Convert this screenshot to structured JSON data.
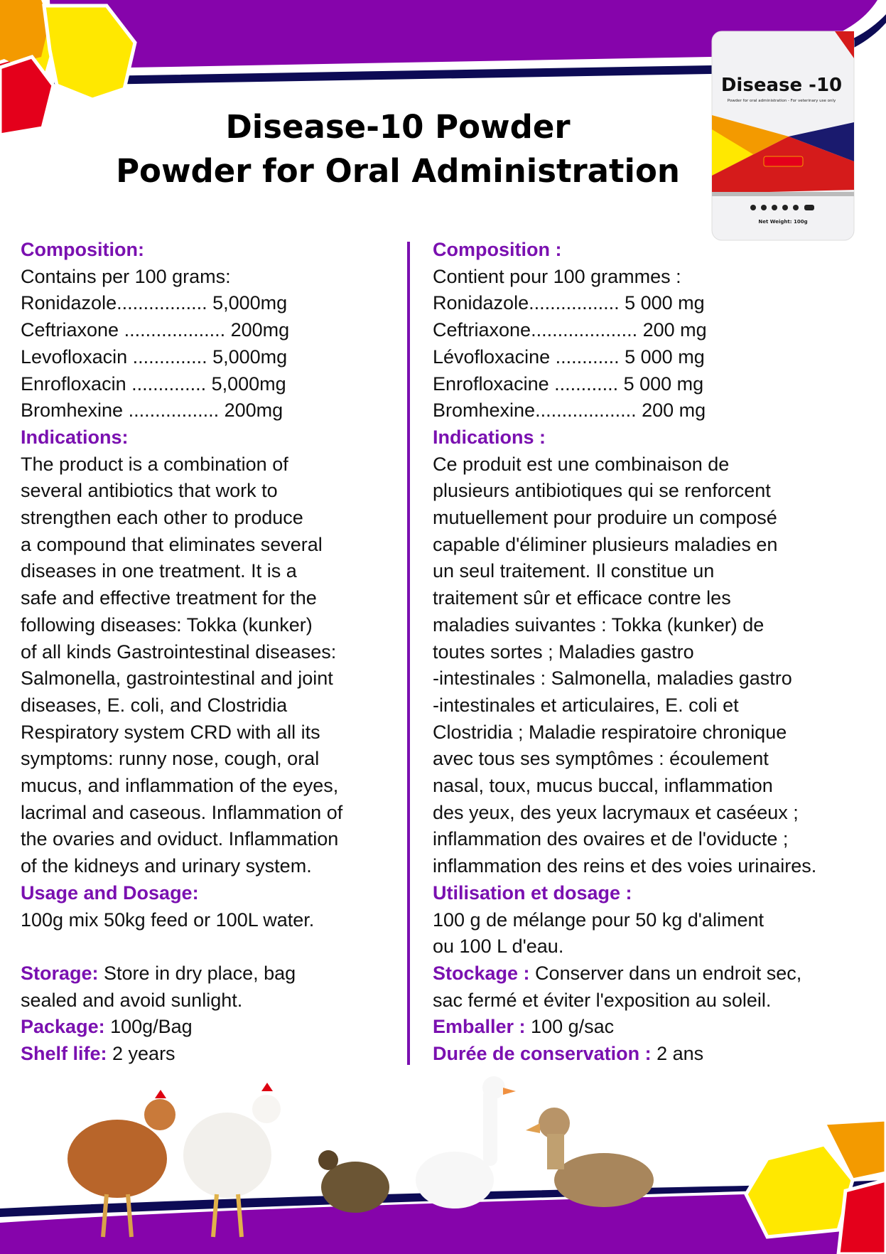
{
  "title": {
    "line1": "Disease-10 Powder",
    "line2": "Powder for Oral Administration"
  },
  "package": {
    "brand": "Disease -10",
    "subtitle": "Powder for oral administration - For veterinary use only",
    "net_weight": "Net Weight: 100g"
  },
  "colors": {
    "purple": "#7a10b0",
    "navy": "#0d0b55",
    "orange": "#f39a00",
    "yellow": "#ffe800",
    "red": "#e4001b"
  },
  "english": [
    {
      "h": "Composition:"
    },
    {
      "t": "Contains per 100 grams:"
    },
    {
      "t": "Ronidazole................. 5,000mg"
    },
    {
      "t": "Ceftriaxone ................... 200mg"
    },
    {
      "t": "Levofloxacin .............. 5,000mg"
    },
    {
      "t": "Enrofloxacin .............. 5,000mg"
    },
    {
      "t": "Bromhexine ................. 200mg"
    },
    {
      "h": "Indications:"
    },
    {
      "t": "The product is a combination of"
    },
    {
      "t": "several antibiotics that work to"
    },
    {
      "t": "strengthen each other to produce"
    },
    {
      "t": "a compound that eliminates several"
    },
    {
      "t": "diseases in one treatment. It is a"
    },
    {
      "t": "safe and effective treatment for the"
    },
    {
      "t": "following diseases: Tokka (kunker)"
    },
    {
      "t": "of all kinds Gastrointestinal diseases:"
    },
    {
      "t": "Salmonella, gastrointestinal and joint"
    },
    {
      "t": "diseases, E. coli, and Clostridia"
    },
    {
      "t": "Respiratory system CRD with all its"
    },
    {
      "t": "symptoms: runny nose, cough, oral"
    },
    {
      "t": "mucus, and inflammation of the eyes,"
    },
    {
      "t": "lacrimal and caseous. Inflammation of"
    },
    {
      "t": "the ovaries and oviduct. Inflammation"
    },
    {
      "t": "of the kidneys and urinary system."
    },
    {
      "h": "Usage and Dosage:"
    },
    {
      "t": "100g mix 50kg feed or 100L water."
    },
    {
      "gap": true
    },
    {
      "h": "Storage:",
      "t": " Store in dry place, bag"
    },
    {
      "t": "sealed and avoid sunlight."
    },
    {
      "h": "Package:",
      "t": " 100g/Bag"
    },
    {
      "h": "Shelf life:",
      "t": " 2 years"
    }
  ],
  "french": [
    {
      "h": "Composition :"
    },
    {
      "t": "Contient pour 100 grammes :"
    },
    {
      "t": "Ronidazole................. 5 000 mg"
    },
    {
      "t": "Ceftriaxone.................... 200 mg"
    },
    {
      "t": "Lévofloxacine ............ 5 000 mg"
    },
    {
      "t": "Enrofloxacine ............ 5 000 mg"
    },
    {
      "t": "Bromhexine................... 200 mg"
    },
    {
      "h": "Indications :"
    },
    {
      "t": "Ce produit est une combinaison de"
    },
    {
      "t": "plusieurs antibiotiques qui se renforcent"
    },
    {
      "t": "mutuellement pour produire un composé"
    },
    {
      "t": "capable d'éliminer plusieurs maladies en"
    },
    {
      "t": "un seul traitement. Il constitue un"
    },
    {
      "t": "traitement sûr et efficace contre les"
    },
    {
      "t": "maladies suivantes : Tokka (kunker) de"
    },
    {
      "t": "toutes sortes ; Maladies gastro"
    },
    {
      "t": "-intestinales : Salmonella, maladies gastro"
    },
    {
      "t": "-intestinales et articulaires, E. coli et"
    },
    {
      "t": "Clostridia ; Maladie respiratoire chronique"
    },
    {
      "t": "avec tous ses symptômes : écoulement"
    },
    {
      "t": "nasal, toux, mucus buccal, inflammation"
    },
    {
      "t": "des yeux, des yeux lacrymaux et caséeux ;"
    },
    {
      "t": "inflammation des ovaires et de l'oviducte ;"
    },
    {
      "t": "inflammation des reins et des voies urinaires."
    },
    {
      "h": "Utilisation et dosage :"
    },
    {
      "t": "100 g de mélange pour 50 kg d'aliment"
    },
    {
      "t": "ou 100 L d'eau."
    },
    {
      "h": "Stockage :",
      "t": " Conserver dans un endroit sec,"
    },
    {
      "t": "sac fermé et éviter l'exposition au soleil."
    },
    {
      "h": "Emballer :",
      "t": " 100 g/sac"
    },
    {
      "h": "Durée de conservation :",
      "t": " 2 ans"
    }
  ]
}
